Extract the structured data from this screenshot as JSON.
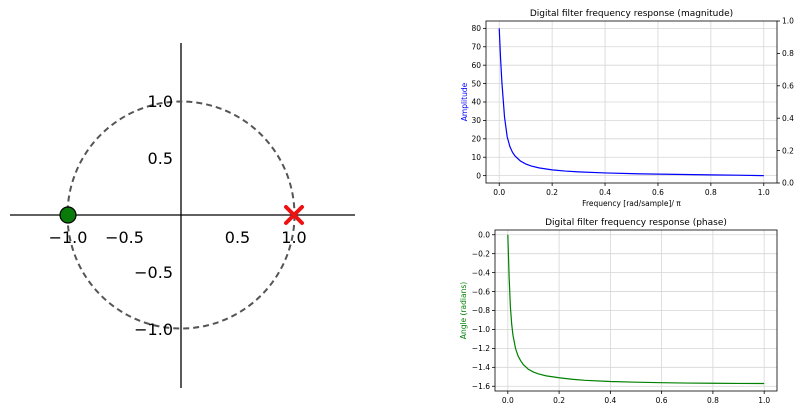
{
  "chart_data": [
    {
      "type": "scatter",
      "title": "",
      "xlabel": "",
      "ylabel": "",
      "xlim": [
        -1.5,
        1.5
      ],
      "ylim": [
        -1.5,
        1.5
      ],
      "x_ticks": [
        "−1.0",
        "−0.5",
        "0.5",
        "1.0"
      ],
      "y_ticks": [
        "1.0",
        "0.5",
        "−0.5",
        "−1.0"
      ],
      "unit_circle": true,
      "grid": false,
      "zeros": [
        {
          "x": -1.0,
          "y": 0.0
        }
      ],
      "poles": [
        {
          "x": 1.0,
          "y": 0.0
        }
      ],
      "colors": {
        "zero": "#0a7a0a",
        "pole": "#ee1111",
        "circle": "#555555"
      }
    },
    {
      "type": "line",
      "title": "Digital filter frequency response (magnitude)",
      "xlabel": "Frequency [rad/sample]/ π",
      "ylabel": "Amplitude",
      "xlim": [
        -0.05,
        1.05
      ],
      "ylim": [
        -4,
        84
      ],
      "x_ticks": [
        "0.0",
        "0.2",
        "0.4",
        "0.6",
        "0.8",
        "1.0"
      ],
      "y_ticks": [
        "0",
        "10",
        "20",
        "30",
        "40",
        "50",
        "60",
        "70",
        "80"
      ],
      "y2_ticks": [
        "0.0",
        "0.2",
        "0.4",
        "0.6",
        "0.8",
        "1.0"
      ],
      "grid": true,
      "color": "#0000ff",
      "x": [
        0.0,
        0.005,
        0.01,
        0.02,
        0.03,
        0.04,
        0.05,
        0.06,
        0.08,
        0.1,
        0.12,
        0.15,
        0.2,
        0.25,
        0.3,
        0.4,
        0.5,
        0.6,
        0.7,
        0.8,
        0.9,
        1.0
      ],
      "values": [
        80.0,
        63.7,
        50.9,
        31.8,
        21.2,
        15.9,
        12.7,
        10.6,
        7.95,
        6.35,
        5.28,
        4.21,
        3.14,
        2.48,
        2.04,
        1.46,
        1.08,
        0.81,
        0.6,
        0.41,
        0.24,
        0.0
      ]
    },
    {
      "type": "line",
      "title": "Digital filter frequency response (phase)",
      "xlabel": "",
      "ylabel": "Angle (radians)",
      "xlim": [
        -0.05,
        1.05
      ],
      "ylim": [
        -1.65,
        0.05
      ],
      "x_ticks": [
        "0.0",
        "0.2",
        "0.4",
        "0.6",
        "0.8",
        "1.0"
      ],
      "y_ticks": [
        "0.0",
        "−0.2",
        "−0.4",
        "−0.6",
        "−0.8",
        "−1.0",
        "−1.2",
        "−1.4",
        "−1.6"
      ],
      "grid": true,
      "color": "#008000",
      "x": [
        0.0,
        0.005,
        0.01,
        0.015,
        0.02,
        0.03,
        0.04,
        0.05,
        0.06,
        0.08,
        0.1,
        0.12,
        0.15,
        0.2,
        0.25,
        0.3,
        0.4,
        0.5,
        0.6,
        0.7,
        0.8,
        0.9,
        1.0
      ],
      "values": [
        -0.0,
        -0.44,
        -0.76,
        -0.94,
        -1.06,
        -1.2,
        -1.28,
        -1.33,
        -1.37,
        -1.42,
        -1.45,
        -1.47,
        -1.49,
        -1.51,
        -1.526,
        -1.537,
        -1.55,
        -1.557,
        -1.562,
        -1.566,
        -1.568,
        -1.57,
        -1.5708
      ]
    }
  ]
}
